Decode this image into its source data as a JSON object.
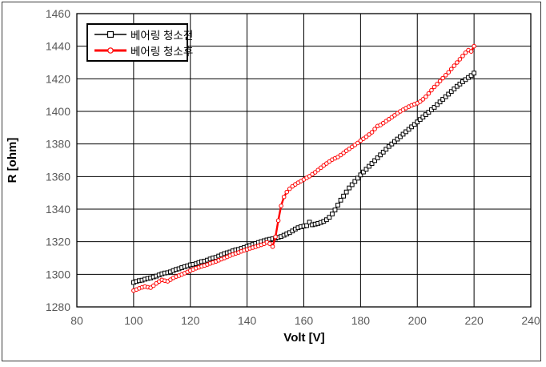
{
  "figure": {
    "background": "#ffffff",
    "border_color": "#3a3a3a"
  },
  "colors": {
    "series_before": "#000000",
    "series_after": "#ff0000",
    "tick_label": "#595959",
    "grid": "#000000",
    "frame": "#000000",
    "legend_border": "#000000"
  },
  "chart_data": {
    "type": "line",
    "title": "",
    "xlabel": "Volt [V]",
    "ylabel": "R [ohm]",
    "xlim": [
      80,
      240
    ],
    "ylim": [
      1280,
      1460
    ],
    "xticks": [
      80,
      100,
      120,
      140,
      160,
      180,
      200,
      220,
      240
    ],
    "yticks": [
      1280,
      1300,
      1320,
      1340,
      1360,
      1380,
      1400,
      1420,
      1440,
      1460
    ],
    "grid": true,
    "legend_position": "inside-top-left",
    "series": [
      {
        "id": "before-cleaning",
        "name": "베어링 청소전",
        "color": "#000000",
        "marker": "square",
        "line_width": 1,
        "points": [
          [
            100,
            1295
          ],
          [
            101,
            1295.6
          ],
          [
            102,
            1296.1
          ],
          [
            103,
            1296.4
          ],
          [
            104,
            1297
          ],
          [
            105,
            1297.5
          ],
          [
            106,
            1297.8
          ],
          [
            107,
            1298.4
          ],
          [
            108,
            1298.9
          ],
          [
            109,
            1299.6
          ],
          [
            110,
            1300.3
          ],
          [
            111,
            1300.8
          ],
          [
            112,
            1301
          ],
          [
            113,
            1301.5
          ],
          [
            114,
            1302.3
          ],
          [
            115,
            1303
          ],
          [
            116,
            1303.4
          ],
          [
            117,
            1304.1
          ],
          [
            118,
            1304.7
          ],
          [
            119,
            1305.2
          ],
          [
            120,
            1305.8
          ],
          [
            121,
            1306.1
          ],
          [
            122,
            1306.5
          ],
          [
            123,
            1307.2
          ],
          [
            124,
            1307.8
          ],
          [
            125,
            1308.1
          ],
          [
            126,
            1308.7
          ],
          [
            127,
            1309.4
          ],
          [
            128,
            1310
          ],
          [
            129,
            1310.4
          ],
          [
            130,
            1311.2
          ],
          [
            131,
            1311.9
          ],
          [
            132,
            1312.7
          ],
          [
            133,
            1313.2
          ],
          [
            134,
            1313.7
          ],
          [
            135,
            1314.4
          ],
          [
            136,
            1315
          ],
          [
            137,
            1315.3
          ],
          [
            138,
            1315.9
          ],
          [
            139,
            1316.5
          ],
          [
            140,
            1317.1
          ],
          [
            141,
            1317.7
          ],
          [
            142,
            1318.3
          ],
          [
            143,
            1318.9
          ],
          [
            144,
            1319.5
          ],
          [
            145,
            1320.1
          ],
          [
            146,
            1320.6
          ],
          [
            147,
            1321.1
          ],
          [
            148,
            1321.5
          ],
          [
            149,
            1321.8
          ],
          [
            150,
            1322.1
          ],
          [
            151,
            1322.7
          ],
          [
            152,
            1323.2
          ],
          [
            153,
            1324
          ],
          [
            154,
            1324.8
          ],
          [
            155,
            1325.6
          ],
          [
            156,
            1326.6
          ],
          [
            157,
            1327.8
          ],
          [
            158,
            1328.6
          ],
          [
            159,
            1329.2
          ],
          [
            160,
            1329.6
          ],
          [
            161,
            1329.9
          ],
          [
            162,
            1332
          ],
          [
            163,
            1330.4
          ],
          [
            164,
            1330.8
          ],
          [
            165,
            1331.2
          ],
          [
            166,
            1331.8
          ],
          [
            167,
            1332.5
          ],
          [
            168,
            1333.5
          ],
          [
            169,
            1335
          ],
          [
            170,
            1337
          ],
          [
            171,
            1339.5
          ],
          [
            172,
            1342.5
          ],
          [
            173,
            1345.5
          ],
          [
            174,
            1348
          ],
          [
            175,
            1350.5
          ],
          [
            176,
            1353
          ],
          [
            177,
            1355
          ],
          [
            178,
            1357
          ],
          [
            179,
            1359
          ],
          [
            180,
            1361
          ],
          [
            181,
            1362.8
          ],
          [
            182,
            1364.5
          ],
          [
            183,
            1366.3
          ],
          [
            184,
            1368
          ],
          [
            185,
            1369.8
          ],
          [
            186,
            1371.5
          ],
          [
            187,
            1373.3
          ],
          [
            188,
            1375
          ],
          [
            189,
            1376.8
          ],
          [
            190,
            1378.5
          ],
          [
            191,
            1380
          ],
          [
            192,
            1381.5
          ],
          [
            193,
            1383
          ],
          [
            194,
            1384.5
          ],
          [
            195,
            1386
          ],
          [
            196,
            1387.5
          ],
          [
            197,
            1389
          ],
          [
            198,
            1390.5
          ],
          [
            199,
            1392
          ],
          [
            200,
            1393.5
          ],
          [
            201,
            1395
          ],
          [
            202,
            1396.5
          ],
          [
            203,
            1398
          ],
          [
            204,
            1399.5
          ],
          [
            205,
            1401
          ],
          [
            206,
            1402.5
          ],
          [
            207,
            1404.2
          ],
          [
            208,
            1405.8
          ],
          [
            209,
            1407.4
          ],
          [
            210,
            1409
          ],
          [
            211,
            1410.6
          ],
          [
            212,
            1412.2
          ],
          [
            213,
            1413.8
          ],
          [
            214,
            1415.4
          ],
          [
            215,
            1416.8
          ],
          [
            216,
            1418.2
          ],
          [
            217,
            1419.5
          ],
          [
            218,
            1420.8
          ],
          [
            219,
            1422
          ],
          [
            220,
            1423.5
          ]
        ]
      },
      {
        "id": "after-cleaning",
        "name": "베어링 청소후",
        "color": "#ff0000",
        "marker": "circle",
        "line_width": 2.4,
        "points": [
          [
            100,
            1290
          ],
          [
            101,
            1290.7
          ],
          [
            102,
            1291.4
          ],
          [
            103,
            1292
          ],
          [
            104,
            1292.5
          ],
          [
            105,
            1292.1
          ],
          [
            106,
            1291.8
          ],
          [
            107,
            1293
          ],
          [
            108,
            1294.4
          ],
          [
            109,
            1295.6
          ],
          [
            110,
            1296.6
          ],
          [
            111,
            1296.1
          ],
          [
            112,
            1295.7
          ],
          [
            113,
            1296.7
          ],
          [
            114,
            1297.8
          ],
          [
            115,
            1298.6
          ],
          [
            116,
            1299.2
          ],
          [
            117,
            1299.9
          ],
          [
            118,
            1300.7
          ],
          [
            119,
            1301.5
          ],
          [
            120,
            1302.3
          ],
          [
            121,
            1303
          ],
          [
            122,
            1303.7
          ],
          [
            123,
            1304.3
          ],
          [
            124,
            1304.9
          ],
          [
            125,
            1305.4
          ],
          [
            126,
            1306
          ],
          [
            127,
            1306.7
          ],
          [
            128,
            1307.3
          ],
          [
            129,
            1307.9
          ],
          [
            130,
            1308.6
          ],
          [
            131,
            1309.3
          ],
          [
            132,
            1310
          ],
          [
            133,
            1310.7
          ],
          [
            134,
            1311.5
          ],
          [
            135,
            1312.2
          ],
          [
            136,
            1312.8
          ],
          [
            137,
            1313.4
          ],
          [
            138,
            1314.1
          ],
          [
            139,
            1314.7
          ],
          [
            140,
            1315.3
          ],
          [
            141,
            1315.9
          ],
          [
            142,
            1316.4
          ],
          [
            143,
            1316.9
          ],
          [
            144,
            1317.5
          ],
          [
            145,
            1318.1
          ],
          [
            146,
            1318.7
          ],
          [
            147,
            1319.6
          ],
          [
            148,
            1318.8
          ],
          [
            149,
            1317
          ],
          [
            150,
            1323
          ],
          [
            151,
            1333
          ],
          [
            152,
            1342
          ],
          [
            153,
            1347.5
          ],
          [
            154,
            1350.5
          ],
          [
            155,
            1352.5
          ],
          [
            156,
            1354
          ],
          [
            157,
            1355.2
          ],
          [
            158,
            1356.2
          ],
          [
            159,
            1357.2
          ],
          [
            160,
            1358.2
          ],
          [
            161,
            1359.2
          ],
          [
            162,
            1360.2
          ],
          [
            163,
            1361.4
          ],
          [
            164,
            1362.6
          ],
          [
            165,
            1364
          ],
          [
            166,
            1365.4
          ],
          [
            167,
            1366.8
          ],
          [
            168,
            1368
          ],
          [
            169,
            1369.2
          ],
          [
            170,
            1370.4
          ],
          [
            171,
            1371.2
          ],
          [
            172,
            1372
          ],
          [
            173,
            1373.2
          ],
          [
            174,
            1374.5
          ],
          [
            175,
            1375.8
          ],
          [
            176,
            1377
          ],
          [
            177,
            1378.2
          ],
          [
            178,
            1379.4
          ],
          [
            179,
            1380.6
          ],
          [
            180,
            1382
          ],
          [
            181,
            1383.2
          ],
          [
            182,
            1384.4
          ],
          [
            183,
            1385.8
          ],
          [
            184,
            1387.2
          ],
          [
            185,
            1389.2
          ],
          [
            186,
            1391
          ],
          [
            187,
            1391.6
          ],
          [
            188,
            1392.8
          ],
          [
            189,
            1394
          ],
          [
            190,
            1395.2
          ],
          [
            191,
            1396.4
          ],
          [
            192,
            1397.6
          ],
          [
            193,
            1398.8
          ],
          [
            194,
            1400
          ],
          [
            195,
            1401
          ],
          [
            196,
            1402
          ],
          [
            197,
            1402.9
          ],
          [
            198,
            1403.7
          ],
          [
            199,
            1404.4
          ],
          [
            200,
            1405
          ],
          [
            201,
            1406
          ],
          [
            202,
            1407.4
          ],
          [
            203,
            1409
          ],
          [
            204,
            1411
          ],
          [
            205,
            1413
          ],
          [
            206,
            1415
          ],
          [
            207,
            1416.8
          ],
          [
            208,
            1418.6
          ],
          [
            209,
            1420.4
          ],
          [
            210,
            1422.2
          ],
          [
            211,
            1424
          ],
          [
            212,
            1426
          ],
          [
            213,
            1428
          ],
          [
            214,
            1430
          ],
          [
            215,
            1432
          ],
          [
            216,
            1434
          ],
          [
            217,
            1436
          ],
          [
            218,
            1437.6
          ],
          [
            219,
            1436.8
          ],
          [
            220,
            1440
          ]
        ]
      }
    ]
  }
}
